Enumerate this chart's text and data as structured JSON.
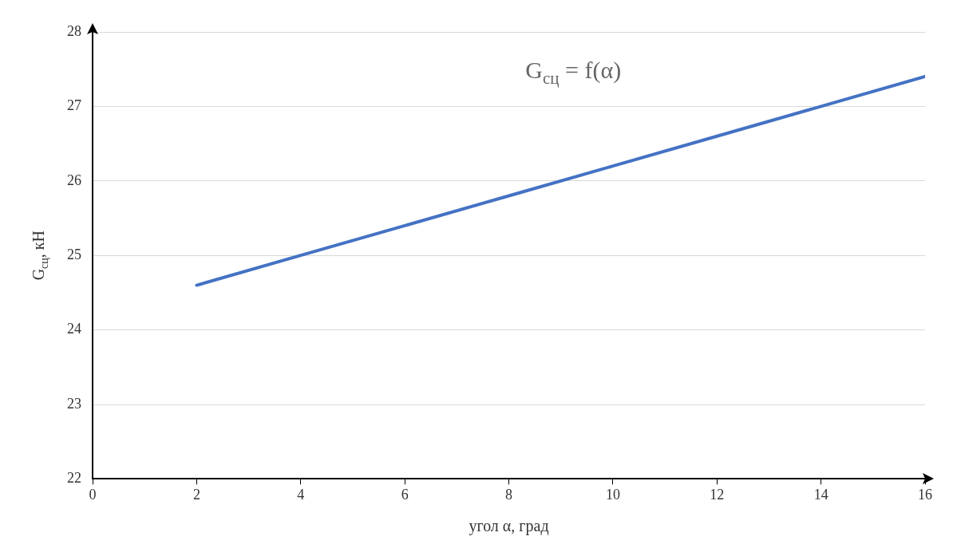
{
  "chart_data": {
    "type": "line",
    "xlabel": "угол α, град",
    "ylabel": "G$_{сц}$, кН",
    "annotations": [
      "G$_{сц}$ = f(α)"
    ],
    "x": [
      2,
      4,
      6,
      8,
      10,
      12,
      14,
      16
    ],
    "series": [
      {
        "color": "#4472c4",
        "values": [
          24.6,
          25.0,
          25.4,
          25.8,
          26.2,
          26.6,
          27.0,
          27.4
        ]
      }
    ],
    "xlim": [
      0,
      16
    ],
    "xticks": [
      0,
      2,
      4,
      6,
      8,
      10,
      12,
      14,
      16
    ],
    "ylim": [
      22,
      28
    ],
    "yticks": [
      22,
      23,
      24,
      25,
      26,
      27,
      28
    ],
    "grid": "y",
    "legend": false,
    "marker": "none",
    "line_style": "solid"
  }
}
